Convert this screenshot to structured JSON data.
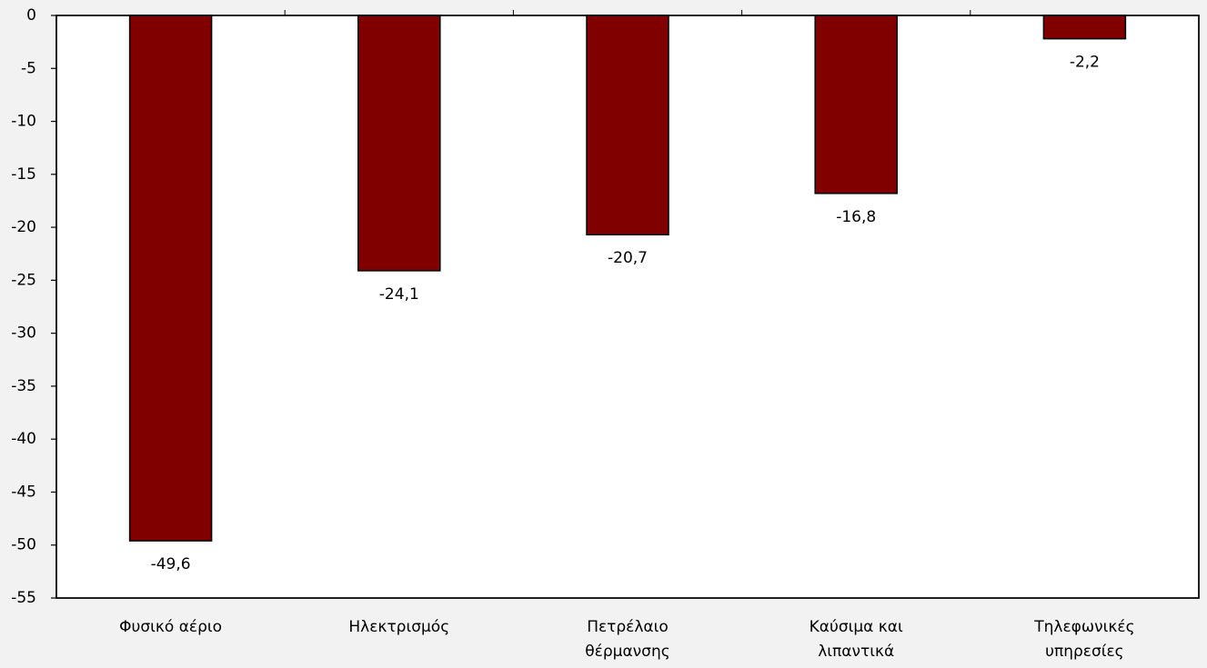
{
  "chart_data": {
    "type": "bar",
    "categories": [
      "Φυσικό αέριο",
      "Ηλεκτρισμός",
      "Πετρέλαιο\nθέρμανσης",
      "Καύσιμα και\nλιπαντικά",
      "Τηλεφωνικές\nυπηρεσίες"
    ],
    "values": [
      -49.6,
      -24.1,
      -20.7,
      -16.8,
      -2.2
    ],
    "value_labels": [
      "-49,6",
      "-24,1",
      "-20,7",
      "-16,8",
      "-2,2"
    ],
    "color": "#800000",
    "ylim": [
      -55,
      0
    ],
    "yticks": [
      0,
      -5,
      -10,
      -15,
      -20,
      -25,
      -30,
      -35,
      -40,
      -45,
      -50,
      -55
    ],
    "grid": false
  }
}
